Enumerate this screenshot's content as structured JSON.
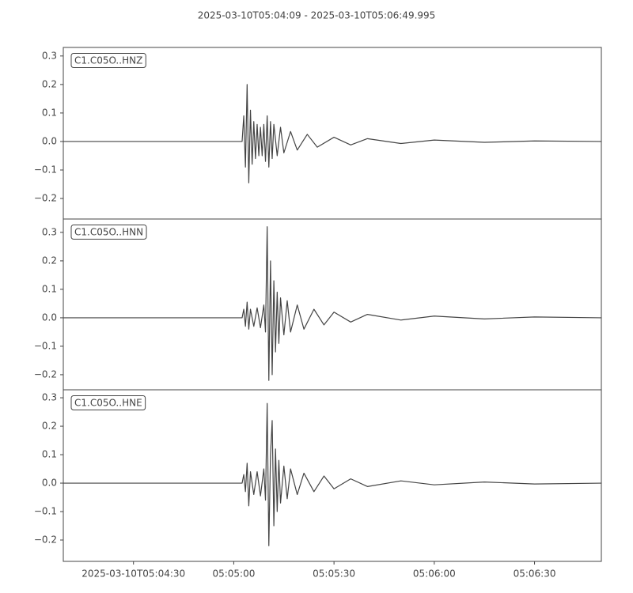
{
  "title": "2025-03-10T05:04:09  -  2025-03-10T05:06:49.995",
  "chart_data": [
    {
      "type": "line",
      "title": "C1.C05O..HNZ",
      "color": "#444444",
      "xlim": [
        "2025-03-10T05:04:09",
        "2025-03-10T05:06:49.995"
      ],
      "ylim": [
        -0.272,
        0.33
      ],
      "yticks": [
        {
          "value": -0.2,
          "label": "−0.2"
        },
        {
          "value": -0.1,
          "label": "−0.1"
        },
        {
          "value": 0,
          "label": "0.0"
        },
        0.1,
        0.2,
        0.3
      ],
      "x": [
        "2025-03-10T05:04:09",
        "2025-03-10T05:05:02.5",
        "2025-03-10T05:05:03",
        "2025-03-10T05:05:03.5",
        "2025-03-10T05:05:04",
        "2025-03-10T05:05:04.5",
        "2025-03-10T05:05:05",
        "2025-03-10T05:05:05.5",
        "2025-03-10T05:05:06",
        "2025-03-10T05:05:06.5",
        "2025-03-10T05:05:07",
        "2025-03-10T05:05:07.5",
        "2025-03-10T05:05:08",
        "2025-03-10T05:05:08.5",
        "2025-03-10T05:05:09",
        "2025-03-10T05:05:09.5",
        "2025-03-10T05:05:10",
        "2025-03-10T05:05:10.5",
        "2025-03-10T05:05:11",
        "2025-03-10T05:05:11.5",
        "2025-03-10T05:05:12",
        "2025-03-10T05:05:13",
        "2025-03-10T05:05:14",
        "2025-03-10T05:05:15",
        "2025-03-10T05:05:17",
        "2025-03-10T05:05:19",
        "2025-03-10T05:05:22",
        "2025-03-10T05:05:25",
        "2025-03-10T05:05:30",
        "2025-03-10T05:05:35",
        "2025-03-10T05:05:40",
        "2025-03-10T05:05:50",
        "2025-03-10T05:06:00",
        "2025-03-10T05:06:15",
        "2025-03-10T05:06:30",
        "2025-03-10T05:06:49.995"
      ],
      "values": [
        0,
        0,
        0.09,
        -0.09,
        0.2,
        -0.145,
        0.11,
        -0.08,
        0.07,
        -0.06,
        0.06,
        -0.05,
        0.05,
        -0.05,
        0.06,
        -0.07,
        0.09,
        -0.09,
        0.07,
        -0.06,
        0.06,
        -0.05,
        0.05,
        -0.04,
        0.035,
        -0.03,
        0.025,
        -0.02,
        0.015,
        -0.012,
        0.01,
        -0.007,
        0.005,
        -0.003,
        0.002,
        0
      ]
    },
    {
      "type": "line",
      "title": "C1.C05O..HNN",
      "color": "#444444",
      "xlim": [
        "2025-03-10T05:04:09",
        "2025-03-10T05:06:49.995"
      ],
      "ylim": [
        -0.253,
        0.347
      ],
      "yticks": [
        {
          "value": -0.2,
          "label": "−0.2"
        },
        {
          "value": -0.1,
          "label": "−0.1"
        },
        {
          "value": 0,
          "label": "0.0"
        },
        0.1,
        0.2,
        0.3
      ],
      "x": [
        "2025-03-10T05:04:09",
        "2025-03-10T05:05:02.5",
        "2025-03-10T05:05:03",
        "2025-03-10T05:05:03.5",
        "2025-03-10T05:05:04",
        "2025-03-10T05:05:04.5",
        "2025-03-10T05:05:05",
        "2025-03-10T05:05:06",
        "2025-03-10T05:05:07",
        "2025-03-10T05:05:08",
        "2025-03-10T05:05:09",
        "2025-03-10T05:05:09.5",
        "2025-03-10T05:05:10",
        "2025-03-10T05:05:10.5",
        "2025-03-10T05:05:11",
        "2025-03-10T05:05:11.5",
        "2025-03-10T05:05:12",
        "2025-03-10T05:05:12.5",
        "2025-03-10T05:05:13",
        "2025-03-10T05:05:13.5",
        "2025-03-10T05:05:14",
        "2025-03-10T05:05:15",
        "2025-03-10T05:05:16",
        "2025-03-10T05:05:17",
        "2025-03-10T05:05:19",
        "2025-03-10T05:05:21",
        "2025-03-10T05:05:24",
        "2025-03-10T05:05:27",
        "2025-03-10T05:05:30",
        "2025-03-10T05:05:35",
        "2025-03-10T05:05:40",
        "2025-03-10T05:05:50",
        "2025-03-10T05:06:00",
        "2025-03-10T05:06:15",
        "2025-03-10T05:06:30",
        "2025-03-10T05:06:49.995"
      ],
      "values": [
        0,
        0,
        0.03,
        -0.03,
        0.055,
        -0.04,
        0.03,
        -0.03,
        0.035,
        -0.035,
        0.045,
        -0.05,
        0.32,
        -0.22,
        0.2,
        -0.2,
        0.13,
        -0.12,
        0.09,
        -0.09,
        0.07,
        -0.06,
        0.06,
        -0.05,
        0.045,
        -0.04,
        0.03,
        -0.025,
        0.02,
        -0.015,
        0.012,
        -0.008,
        0.006,
        -0.004,
        0.003,
        0
      ]
    },
    {
      "type": "line",
      "title": "C1.C05O..HNE",
      "color": "#444444",
      "xlim": [
        "2025-03-10T05:04:09",
        "2025-03-10T05:06:49.995"
      ],
      "ylim": [
        -0.275,
        0.328
      ],
      "yticks": [
        {
          "value": -0.2,
          "label": "−0.2"
        },
        {
          "value": -0.1,
          "label": "−0.1"
        },
        {
          "value": 0,
          "label": "0.0"
        },
        0.1,
        0.2,
        0.3
      ],
      "xticks": [
        "2025-03-10T05:04:30",
        {
          "value": "2025-03-10T05:05:00",
          "label": "05:05:00"
        },
        {
          "value": "2025-03-10T05:05:30",
          "label": "05:05:30"
        },
        {
          "value": "2025-03-10T05:06:00",
          "label": "05:06:00"
        },
        {
          "value": "2025-03-10T05:06:30",
          "label": "05:06:30"
        }
      ],
      "x": [
        "2025-03-10T05:04:09",
        "2025-03-10T05:05:02.5",
        "2025-03-10T05:05:03",
        "2025-03-10T05:05:03.5",
        "2025-03-10T05:05:04",
        "2025-03-10T05:05:04.5",
        "2025-03-10T05:05:05",
        "2025-03-10T05:05:06",
        "2025-03-10T05:05:07",
        "2025-03-10T05:05:08",
        "2025-03-10T05:05:09",
        "2025-03-10T05:05:09.5",
        "2025-03-10T05:05:10",
        "2025-03-10T05:05:10.5",
        "2025-03-10T05:05:11",
        "2025-03-10T05:05:11.5",
        "2025-03-10T05:05:12",
        "2025-03-10T05:05:12.5",
        "2025-03-10T05:05:13",
        "2025-03-10T05:05:13.5",
        "2025-03-10T05:05:14",
        "2025-03-10T05:05:15",
        "2025-03-10T05:05:16",
        "2025-03-10T05:05:17",
        "2025-03-10T05:05:19",
        "2025-03-10T05:05:21",
        "2025-03-10T05:05:24",
        "2025-03-10T05:05:27",
        "2025-03-10T05:05:30",
        "2025-03-10T05:05:35",
        "2025-03-10T05:05:40",
        "2025-03-10T05:05:50",
        "2025-03-10T05:06:00",
        "2025-03-10T05:06:15",
        "2025-03-10T05:06:30",
        "2025-03-10T05:06:49.995"
      ],
      "values": [
        0,
        0,
        0.03,
        -0.03,
        0.07,
        -0.08,
        0.04,
        -0.04,
        0.04,
        -0.045,
        0.05,
        -0.06,
        0.28,
        -0.22,
        0.1,
        0.22,
        -0.15,
        0.12,
        -0.1,
        0.08,
        -0.07,
        0.06,
        -0.055,
        0.05,
        -0.04,
        0.035,
        -0.03,
        0.025,
        -0.02,
        0.015,
        -0.012,
        0.008,
        -0.006,
        0.004,
        -0.003,
        0
      ]
    }
  ]
}
